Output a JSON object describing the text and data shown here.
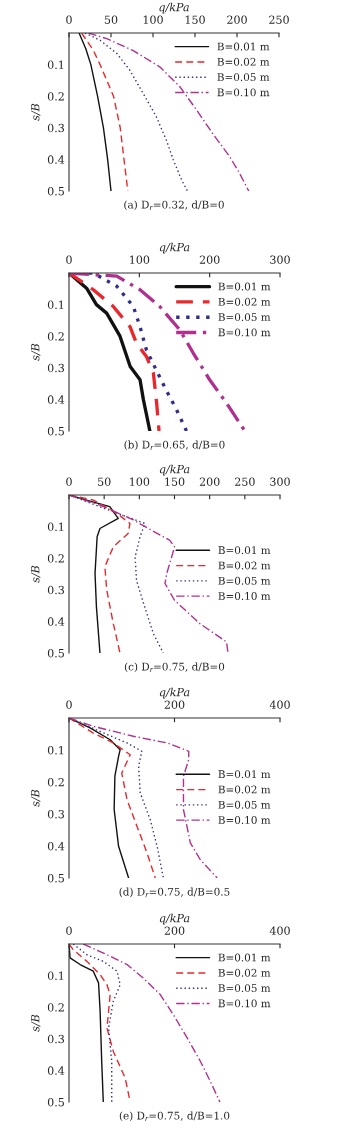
{
  "chart_data": [
    {
      "type": "line",
      "title": "(a) D$_{r}$=0.32, d/B=0",
      "xlabel": "q/kPa",
      "ylabel": "s/B",
      "xlim": [
        0,
        250
      ],
      "xticks": [
        0,
        50,
        100,
        150,
        200,
        250
      ],
      "ylim": [
        0.5,
        0
      ],
      "yticks": [
        0.1,
        0.2,
        0.3,
        0.4,
        0.5
      ],
      "legend": "upper right",
      "grid": false,
      "series": [
        {
          "name": "B=0.01 m",
          "color": "#111111",
          "line_style": "solid",
          "x": [
            12,
            20,
            26,
            34,
            41,
            46,
            50
          ],
          "values": [
            0,
            0.05,
            0.1,
            0.2,
            0.3,
            0.4,
            0.5
          ]
        },
        {
          "name": "B=0.02 m",
          "color": "#e8282c",
          "line_style": "dashed",
          "x": [
            15,
            29,
            37,
            53,
            61,
            65.5,
            70
          ],
          "values": [
            0,
            0.055,
            0.1,
            0.2,
            0.3,
            0.4,
            0.5
          ]
        },
        {
          "name": "B=0.05 m",
          "color": "#2e2e8c",
          "line_style": "dotted",
          "x": [
            19,
            37,
            57,
            72.5,
            88,
            104,
            116,
            124,
            134,
            141
          ],
          "values": [
            0,
            0.023,
            0.065,
            0.118,
            0.19,
            0.265,
            0.34,
            0.4,
            0.465,
            0.5
          ]
        },
        {
          "name": "B=0.10 m",
          "color": "#b03090",
          "line_style": "dashdot",
          "x": [
            23,
            45,
            76,
            108,
            132,
            152,
            171,
            191,
            203,
            214
          ],
          "values": [
            0,
            0.018,
            0.055,
            0.107,
            0.17,
            0.244,
            0.318,
            0.39,
            0.444,
            0.5
          ]
        }
      ]
    },
    {
      "type": "line",
      "title": "(b) D$_{r}$=0.65, d/B=0",
      "xlabel": "q/kPa",
      "ylabel": "s/B",
      "xlim": [
        0,
        300
      ],
      "xticks": [
        0,
        100,
        200,
        300
      ],
      "ylim": [
        0.5,
        0
      ],
      "yticks": [
        0.1,
        0.2,
        0.3,
        0.4,
        0.5
      ],
      "legend": "upper right",
      "grid": false,
      "series": [
        {
          "name": "B=0.01 m",
          "color": "#111111",
          "line_style": "solid",
          "x": [
            0,
            25,
            39,
            53.5,
            72.5,
            87,
            101,
            105.7,
            115
          ],
          "values": [
            0,
            0.048,
            0.1,
            0.127,
            0.2,
            0.296,
            0.338,
            0.4,
            0.5
          ]
        },
        {
          "name": "B=0.02 m",
          "color": "#e8282c",
          "line_style": "dashed",
          "x": [
            0,
            34.6,
            63,
            86.7,
            96,
            110,
            120,
            124.6,
            128
          ],
          "values": [
            0,
            0.053,
            0.106,
            0.17,
            0.222,
            0.264,
            0.317,
            0.412,
            0.5
          ]
        },
        {
          "name": "B=0.05 m",
          "color": "#2e2e8c",
          "line_style": "dotted",
          "x": [
            0,
            34.6,
            68,
            91.5,
            101,
            110,
            124,
            138,
            153,
            167
          ],
          "values": [
            0,
            0,
            0.042,
            0.106,
            0.17,
            0.243,
            0.307,
            0.37,
            0.433,
            0.5
          ]
        },
        {
          "name": "B=0.10 m",
          "color": "#b03090",
          "line_style": "dashdot",
          "x": [
            0,
            68,
            101,
            129,
            157.6,
            176.8,
            200,
            224,
            250
          ],
          "values": [
            0,
            0.01,
            0.053,
            0.106,
            0.18,
            0.254,
            0.338,
            0.412,
            0.5
          ]
        }
      ]
    },
    {
      "type": "line",
      "title": "(c) D$_{r}$=0.75, d/B=0",
      "xlabel": "q/kPa",
      "ylabel": "s/B",
      "xlim": [
        0,
        300
      ],
      "xticks": [
        0,
        50,
        100,
        150,
        200,
        250,
        300
      ],
      "ylim": [
        0.5,
        0
      ],
      "yticks": [
        0.1,
        0.2,
        0.3,
        0.4,
        0.5
      ],
      "legend": "right",
      "grid": false,
      "series": [
        {
          "name": "B=0.01 m",
          "color": "#111111",
          "line_style": "solid",
          "x": [
            0,
            25,
            58,
            70,
            44,
            40,
            37,
            39,
            44
          ],
          "values": [
            0,
            0.016,
            0.037,
            0.074,
            0.106,
            0.132,
            0.248,
            0.354,
            0.5
          ]
        },
        {
          "name": "B=0.02 m",
          "color": "#e8282c",
          "line_style": "dashed",
          "x": [
            0,
            34.6,
            68,
            86.7,
            84,
            63,
            51,
            53.6,
            63,
            72.5
          ],
          "values": [
            0,
            0.016,
            0.058,
            0.09,
            0.122,
            0.164,
            0.227,
            0.3,
            0.407,
            0.5
          ]
        },
        {
          "name": "B=0.05 m",
          "color": "#2e2e8c",
          "line_style": "dotted",
          "x": [
            0,
            44,
            82,
            108,
            101,
            94,
            96,
            106,
            120,
            134
          ],
          "values": [
            0,
            0.037,
            0.069,
            0.09,
            0.132,
            0.196,
            0.27,
            0.343,
            0.439,
            0.5
          ]
        },
        {
          "name": "B=0.10 m",
          "color": "#b03090",
          "line_style": "dashdot",
          "x": [
            0,
            44,
            91.5,
            117,
            143,
            150,
            146,
            139,
            136.5,
            150,
            186,
            224,
            226
          ],
          "values": [
            0,
            0.032,
            0.079,
            0.111,
            0.143,
            0.164,
            0.196,
            0.248,
            0.28,
            0.333,
            0.407,
            0.465,
            0.5
          ]
        }
      ]
    },
    {
      "type": "line",
      "title": "(d) D$_{r}$=0.75, d/B=0.5",
      "xlabel": "q/kPa",
      "ylabel": "s/B",
      "xlim": [
        0,
        400
      ],
      "xticks": [
        0,
        200,
        400
      ],
      "ylim": [
        0.5,
        0
      ],
      "yticks": [
        0.1,
        0.2,
        0.3,
        0.4,
        0.5
      ],
      "legend": "right",
      "grid": false,
      "series": [
        {
          "name": "B=0.01 m",
          "color": "#111111",
          "line_style": "solid",
          "x": [
            0,
            40,
            78,
            97,
            94,
            87,
            85.6,
            94,
            113
          ],
          "values": [
            0,
            0.031,
            0.068,
            0.099,
            0.12,
            0.182,
            0.286,
            0.401,
            0.5
          ]
        },
        {
          "name": "B=0.02 m",
          "color": "#e8282c",
          "line_style": "dashed",
          "x": [
            0,
            46,
            84,
            116,
            100,
            110,
            129,
            148,
            163.5
          ],
          "values": [
            0,
            0.047,
            0.078,
            0.115,
            0.172,
            0.255,
            0.339,
            0.422,
            0.5
          ]
        },
        {
          "name": "B=0.05 m",
          "color": "#2e2e8c",
          "line_style": "dotted",
          "x": [
            0,
            59,
            110,
            138,
            132,
            135,
            154,
            167,
            179
          ],
          "values": [
            0,
            0.042,
            0.078,
            0.104,
            0.151,
            0.234,
            0.318,
            0.401,
            0.5
          ]
        },
        {
          "name": "B=0.10 m",
          "color": "#b03090",
          "line_style": "dashdot",
          "x": [
            0,
            46,
            122,
            186,
            227,
            227,
            217,
            217,
            230,
            249,
            281
          ],
          "values": [
            0,
            0.026,
            0.057,
            0.078,
            0.104,
            0.13,
            0.182,
            0.286,
            0.39,
            0.443,
            0.5
          ]
        }
      ]
    },
    {
      "type": "line",
      "title": "(e) D$_{r}$=0.75, d/B=1.0",
      "xlabel": "q/kPa",
      "ylabel": "s/B",
      "xlim": [
        0,
        400
      ],
      "xticks": [
        0,
        200,
        400
      ],
      "ylim": [
        0.5,
        0
      ],
      "yticks": [
        0.1,
        0.2,
        0.3,
        0.4,
        0.5
      ],
      "legend": "upper right",
      "grid": false,
      "series": [
        {
          "name": "B=0.01 m",
          "color": "#111111",
          "line_style": "solid",
          "x": [
            0,
            2,
            21,
            46,
            56,
            59,
            62,
            65
          ],
          "values": [
            0,
            0.044,
            0.065,
            0.086,
            0.123,
            0.213,
            0.371,
            0.5
          ]
        },
        {
          "name": "B=0.02 m",
          "color": "#e8282c",
          "line_style": "dashed",
          "x": [
            0,
            8,
            34,
            59,
            72,
            78,
            72,
            84,
            106.5,
            116
          ],
          "values": [
            0,
            0.018,
            0.055,
            0.097,
            0.129,
            0.16,
            0.266,
            0.34,
            0.424,
            0.5
          ]
        },
        {
          "name": "B=0.05 m",
          "color": "#2e2e8c",
          "line_style": "dotted",
          "x": [
            8,
            34,
            65,
            91,
            97,
            84,
            75,
            81,
            81
          ],
          "values": [
            0,
            0.034,
            0.055,
            0.086,
            0.129,
            0.181,
            0.266,
            0.371,
            0.5
          ]
        },
        {
          "name": "B=0.10 m",
          "color": "#b03090",
          "line_style": "dashdot",
          "x": [
            27,
            72,
            110,
            141,
            173,
            198,
            224,
            249,
            268,
            286
          ],
          "values": [
            0,
            0.034,
            0.065,
            0.108,
            0.16,
            0.224,
            0.297,
            0.371,
            0.435,
            0.5
          ]
        }
      ]
    }
  ]
}
